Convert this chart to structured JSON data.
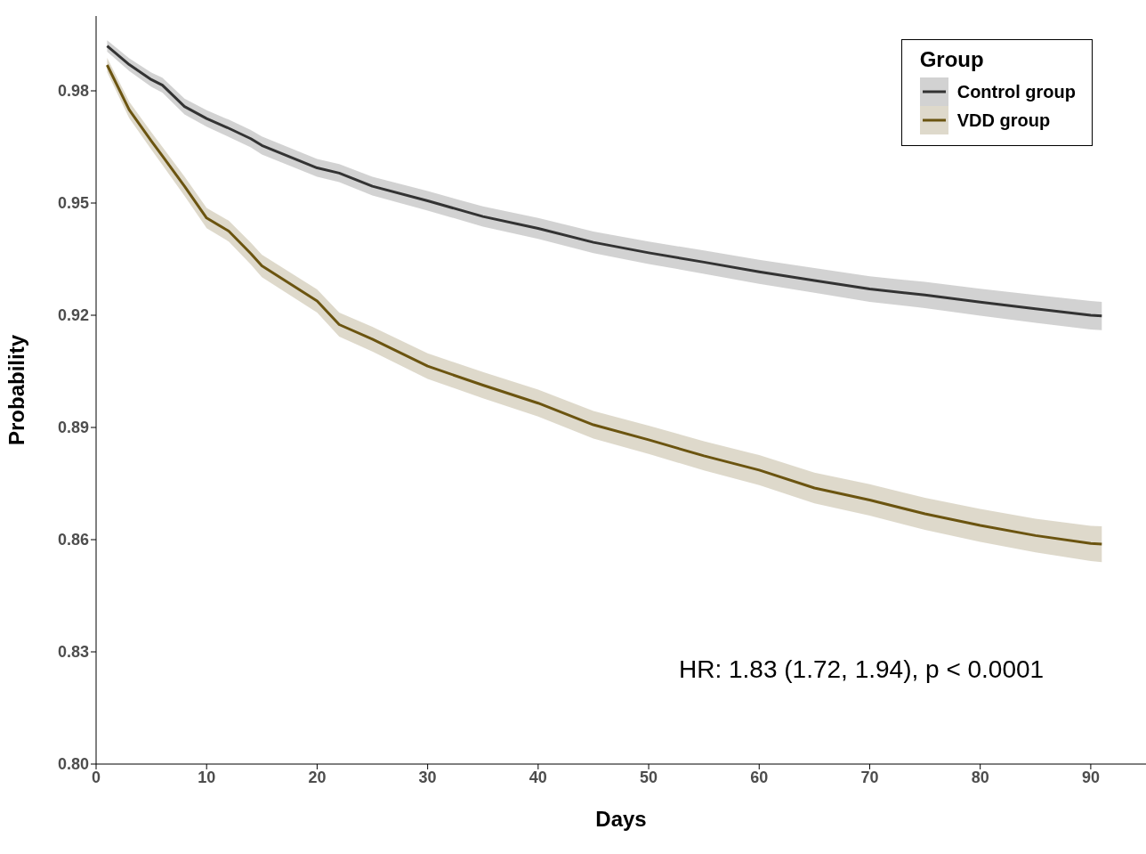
{
  "chart_data": {
    "type": "line",
    "xlabel": "Days",
    "ylabel": "Probability",
    "legend_title": "Group",
    "legend": "top right",
    "marker": "none",
    "line_style": "solid",
    "x": [
      1,
      3,
      5,
      6,
      8,
      10,
      12,
      14,
      15,
      20,
      22,
      25,
      30,
      35,
      40,
      45,
      50,
      55,
      60,
      65,
      70,
      75,
      80,
      85,
      90,
      91
    ],
    "xlim": [
      0,
      95
    ],
    "xticks": [
      0,
      10,
      20,
      30,
      40,
      50,
      60,
      70,
      80,
      90
    ],
    "ylim": [
      0.8,
      1.0
    ],
    "yticks": [
      {
        "value": 0.8,
        "label": "0.80"
      },
      {
        "value": 0.83,
        "label": "0.83"
      },
      {
        "value": 0.86,
        "label": "0.86"
      },
      {
        "value": 0.89,
        "label": "0.89"
      },
      {
        "value": 0.92,
        "label": "0.92"
      },
      {
        "value": 0.95,
        "label": "0.95"
      },
      {
        "value": 0.98,
        "label": "0.98"
      }
    ],
    "series": [
      {
        "name": "Control group",
        "color": "#333333",
        "values": [
          0.992,
          0.987,
          0.983,
          0.9815,
          0.9758,
          0.9726,
          0.97,
          0.9672,
          0.9654,
          0.9594,
          0.958,
          0.9545,
          0.9506,
          0.9464,
          0.9432,
          0.9395,
          0.9367,
          0.9342,
          0.9316,
          0.9293,
          0.927,
          0.9254,
          0.9235,
          0.9217,
          0.92,
          0.9198
        ],
        "lower": [
          0.9905,
          0.9853,
          0.9811,
          0.9795,
          0.9737,
          0.9704,
          0.9677,
          0.9649,
          0.963,
          0.957,
          0.9556,
          0.952,
          0.948,
          0.9437,
          0.9404,
          0.9366,
          0.9337,
          0.9311,
          0.9284,
          0.926,
          0.9236,
          0.9219,
          0.9199,
          0.918,
          0.9162,
          0.916
        ],
        "upper": [
          0.9935,
          0.9887,
          0.9849,
          0.9835,
          0.9779,
          0.9748,
          0.9723,
          0.9695,
          0.9678,
          0.9618,
          0.9604,
          0.957,
          0.9532,
          0.9491,
          0.946,
          0.9424,
          0.9397,
          0.9373,
          0.9348,
          0.9326,
          0.9304,
          0.9289,
          0.9271,
          0.9254,
          0.9238,
          0.9236
        ]
      },
      {
        "name": "VDD group",
        "color": "#6b5410",
        "values": [
          0.9869,
          0.9749,
          0.9666,
          0.9626,
          0.9545,
          0.946,
          0.9425,
          0.9365,
          0.9332,
          0.9238,
          0.9175,
          0.9136,
          0.9064,
          0.9013,
          0.8965,
          0.8907,
          0.8867,
          0.8824,
          0.8786,
          0.8738,
          0.8706,
          0.8669,
          0.8638,
          0.8611,
          0.859,
          0.8588
        ],
        "lower": [
          0.985,
          0.9727,
          0.9643,
          0.9602,
          0.9519,
          0.9433,
          0.9397,
          0.9336,
          0.9302,
          0.9207,
          0.9143,
          0.9103,
          0.903,
          0.8978,
          0.8929,
          0.887,
          0.8829,
          0.8785,
          0.8746,
          0.8697,
          0.8664,
          0.8626,
          0.8594,
          0.8566,
          0.8543,
          0.854
        ],
        "upper": [
          0.9888,
          0.9771,
          0.9689,
          0.965,
          0.9571,
          0.9487,
          0.9453,
          0.9394,
          0.9362,
          0.9269,
          0.9207,
          0.9169,
          0.9098,
          0.9048,
          0.9001,
          0.8944,
          0.8905,
          0.8863,
          0.8826,
          0.8779,
          0.8748,
          0.8712,
          0.8682,
          0.8656,
          0.8637,
          0.8636
        ]
      }
    ],
    "annotations": [
      "HR: 1.83 (1.72, 1.94), p < 0.0001"
    ]
  }
}
